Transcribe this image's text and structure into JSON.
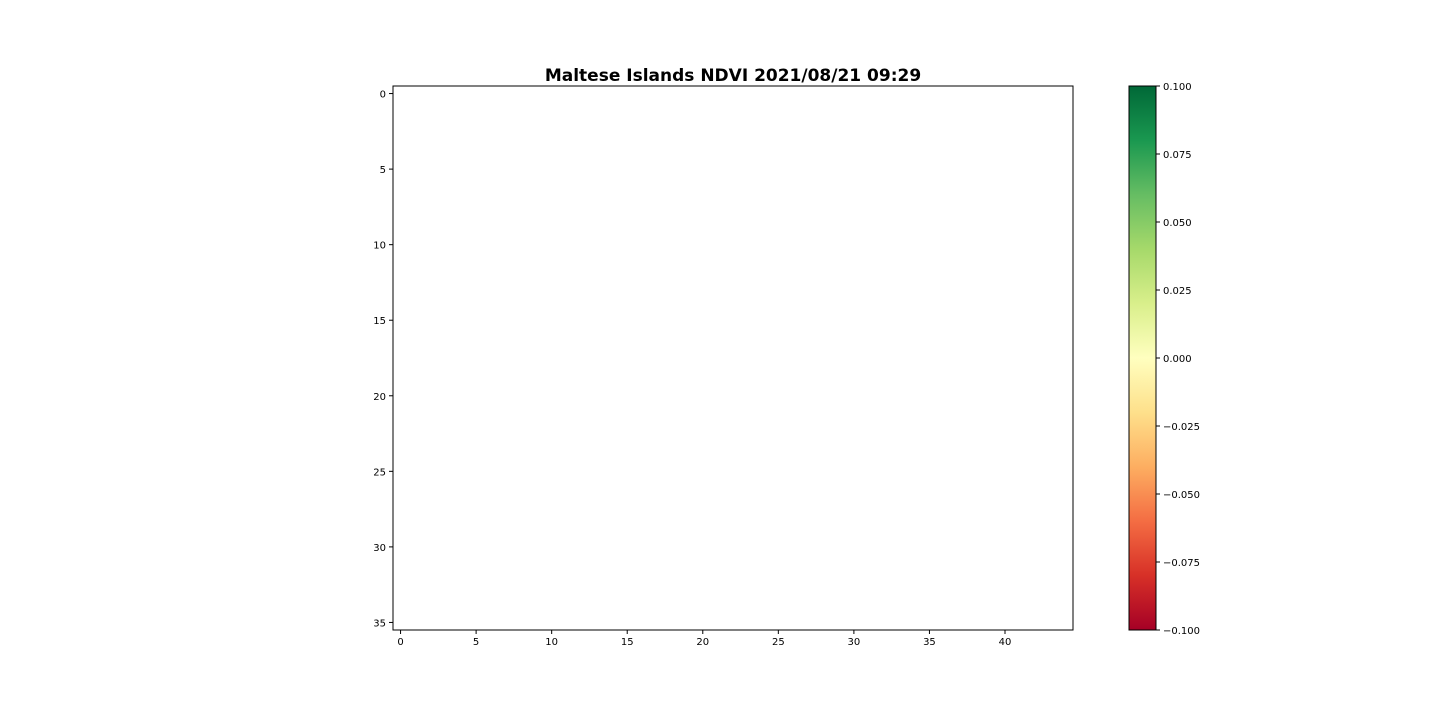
{
  "chart_data": {
    "type": "heatmap",
    "title": "Maltese Islands NDVI 2021/08/21 09:29",
    "xlabel": "",
    "ylabel": "",
    "x_ticks": [
      0,
      5,
      10,
      15,
      20,
      25,
      30,
      35,
      40
    ],
    "y_ticks": [
      0,
      5,
      10,
      15,
      20,
      25,
      30,
      35
    ],
    "xlim": [
      -0.5,
      44.5
    ],
    "ylim": [
      35.5,
      -0.5
    ],
    "grid": false,
    "values": [],
    "colorbar": {
      "colormap": "RdYlGn",
      "range": [
        -0.1,
        0.1
      ],
      "ticks": [
        "0.100",
        "0.075",
        "0.050",
        "0.025",
        "0.000",
        "−0.025",
        "−0.050",
        "−0.075",
        "−0.100"
      ],
      "colors": [
        "#a50026",
        "#d73027",
        "#f46d43",
        "#fdae61",
        "#fee08b",
        "#ffffbf",
        "#d9ef8b",
        "#a6d96a",
        "#66bd63",
        "#1a9850",
        "#006837"
      ]
    }
  }
}
